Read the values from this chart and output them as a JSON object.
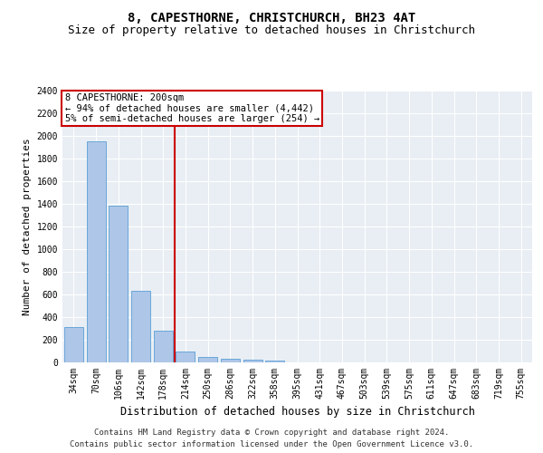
{
  "title": "8, CAPESTHORNE, CHRISTCHURCH, BH23 4AT",
  "subtitle": "Size of property relative to detached houses in Christchurch",
  "xlabel": "Distribution of detached houses by size in Christchurch",
  "ylabel": "Number of detached properties",
  "categories": [
    "34sqm",
    "70sqm",
    "106sqm",
    "142sqm",
    "178sqm",
    "214sqm",
    "250sqm",
    "286sqm",
    "322sqm",
    "358sqm",
    "395sqm",
    "431sqm",
    "467sqm",
    "503sqm",
    "539sqm",
    "575sqm",
    "611sqm",
    "647sqm",
    "683sqm",
    "719sqm",
    "755sqm"
  ],
  "values": [
    315,
    1950,
    1385,
    630,
    280,
    100,
    50,
    35,
    25,
    20,
    0,
    0,
    0,
    0,
    0,
    0,
    0,
    0,
    0,
    0,
    0
  ],
  "bar_color": "#aec6e8",
  "bar_edge_color": "#5a9fd4",
  "vline_index": 5,
  "vline_color": "#cc0000",
  "annotation_text": "8 CAPESTHORNE: 200sqm\n← 94% of detached houses are smaller (4,442)\n5% of semi-detached houses are larger (254) →",
  "annotation_box_color": "#cc0000",
  "ylim": [
    0,
    2400
  ],
  "yticks": [
    0,
    200,
    400,
    600,
    800,
    1000,
    1200,
    1400,
    1600,
    1800,
    2000,
    2200,
    2400
  ],
  "bg_color": "#e8eef4",
  "grid_color": "#ffffff",
  "footer_line1": "Contains HM Land Registry data © Crown copyright and database right 2024.",
  "footer_line2": "Contains public sector information licensed under the Open Government Licence v3.0.",
  "title_fontsize": 10,
  "subtitle_fontsize": 9,
  "xlabel_fontsize": 8.5,
  "ylabel_fontsize": 8,
  "tick_fontsize": 7,
  "annotation_fontsize": 7.5,
  "footer_fontsize": 6.5
}
